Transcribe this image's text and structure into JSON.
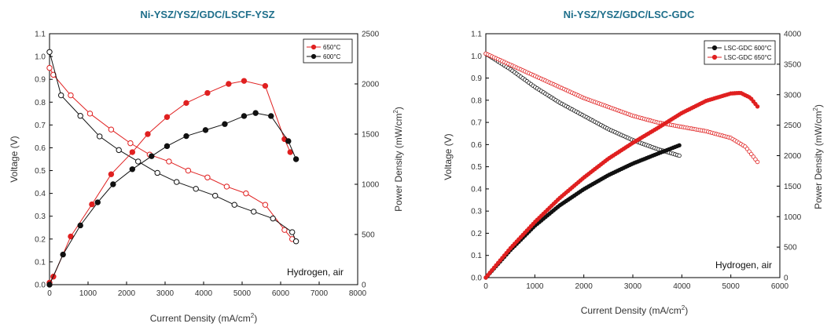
{
  "chart_data": [
    {
      "type": "line",
      "title": "Ni-YSZ/YSZ/GDC/LSCF-YSZ",
      "xlabel": "Current Density (mA/cm²)",
      "ylabel": "Voltage (V)",
      "y2label": "Power Density (mW/cm²)",
      "xlim": [
        0,
        8000
      ],
      "ylim": [
        0.0,
        1.1
      ],
      "y2lim": [
        0,
        2500
      ],
      "xticks": [
        0,
        1000,
        2000,
        3000,
        4000,
        5000,
        6000,
        7000,
        8000
      ],
      "yticks": [
        "0.0",
        "0.1",
        "0.2",
        "0.3",
        "0.4",
        "0.5",
        "0.6",
        "0.7",
        "0.8",
        "0.9",
        "1.0",
        "1.1"
      ],
      "y2ticks": [
        0,
        500,
        1000,
        1500,
        2000,
        2500
      ],
      "legend_position": "top-right",
      "legend": [
        "650°C",
        "600°C"
      ],
      "annotation": "Hydrogen, air",
      "series": [
        {
          "name": "650°C",
          "color": "#e02020",
          "kind": "voltage",
          "x": [
            0,
            100,
            550,
            1050,
            1600,
            2100,
            2600,
            3100,
            3600,
            4100,
            4600,
            5100,
            5600,
            6100,
            6300
          ],
          "y": [
            0.95,
            0.92,
            0.83,
            0.75,
            0.68,
            0.62,
            0.57,
            0.54,
            0.5,
            0.47,
            0.43,
            0.4,
            0.35,
            0.24,
            0.2
          ]
        },
        {
          "name": "600°C",
          "color": "#111111",
          "kind": "voltage",
          "x": [
            0,
            300,
            800,
            1300,
            1800,
            2300,
            2800,
            3300,
            3800,
            4300,
            4800,
            5300,
            5800,
            6300,
            6400
          ],
          "y": [
            1.02,
            0.83,
            0.74,
            0.65,
            0.59,
            0.54,
            0.49,
            0.45,
            0.42,
            0.39,
            0.35,
            0.32,
            0.29,
            0.23,
            0.19
          ]
        },
        {
          "name": "650°C",
          "color": "#e02020",
          "kind": "power",
          "x": [
            0,
            100,
            550,
            1100,
            1600,
            2150,
            2550,
            3050,
            3550,
            4100,
            4650,
            5050,
            5600,
            6100,
            6250
          ],
          "y": [
            20,
            80,
            480,
            800,
            1100,
            1320,
            1500,
            1670,
            1810,
            1910,
            2000,
            2030,
            1980,
            1450,
            1320
          ]
        },
        {
          "name": "600°C",
          "color": "#111111",
          "kind": "power",
          "x": [
            0,
            350,
            800,
            1250,
            1650,
            2150,
            2650,
            3050,
            3550,
            4050,
            4550,
            5050,
            5350,
            5750,
            6200,
            6400
          ],
          "y": [
            0,
            300,
            590,
            820,
            1000,
            1150,
            1280,
            1380,
            1480,
            1540,
            1600,
            1680,
            1710,
            1680,
            1430,
            1250
          ]
        }
      ]
    },
    {
      "type": "scatter",
      "title": "Ni-YSZ/YSZ/GDC/LSC-GDC",
      "xlabel": "Current Density (mA/cm²)",
      "ylabel": "Voltage (V)",
      "y2label": "Power Density (mW/cm²)",
      "xlim": [
        0,
        6000
      ],
      "ylim": [
        0.0,
        1.1
      ],
      "y2lim": [
        0,
        4000
      ],
      "xticks": [
        0,
        1000,
        2000,
        3000,
        4000,
        5000,
        6000
      ],
      "yticks": [
        "0.0",
        "0.1",
        "0.2",
        "0.3",
        "0.4",
        "0.5",
        "0.6",
        "0.7",
        "0.8",
        "0.9",
        "1.0",
        "1.1"
      ],
      "y2ticks": [
        0,
        500,
        1000,
        1500,
        2000,
        2500,
        3000,
        3500,
        4000
      ],
      "legend_position": "top-right",
      "legend": [
        "LSC-GDC 600°C",
        "LSC-GDC 650°C"
      ],
      "annotation": "Hydrogen, air",
      "series": [
        {
          "name": "LSC-GDC 600°C",
          "color": "#111111",
          "kind": "voltage",
          "x": [
            0,
            500,
            1000,
            1500,
            2000,
            2500,
            3000,
            3500,
            3950
          ],
          "y": [
            1.01,
            0.94,
            0.86,
            0.79,
            0.73,
            0.67,
            0.62,
            0.58,
            0.55
          ]
        },
        {
          "name": "LSC-GDC 650°C",
          "color": "#e02020",
          "kind": "voltage",
          "x": [
            0,
            500,
            1000,
            1500,
            2000,
            2500,
            3000,
            3500,
            4000,
            4500,
            5000,
            5300,
            5550
          ],
          "y": [
            1.01,
            0.96,
            0.91,
            0.86,
            0.81,
            0.77,
            0.73,
            0.7,
            0.68,
            0.66,
            0.63,
            0.59,
            0.52
          ]
        },
        {
          "name": "LSC-GDC 600°C",
          "color": "#111111",
          "kind": "power",
          "x": [
            0,
            500,
            1000,
            1500,
            2000,
            2500,
            3000,
            3500,
            3950
          ],
          "y": [
            0,
            450,
            850,
            1180,
            1450,
            1680,
            1870,
            2030,
            2170
          ]
        },
        {
          "name": "LSC-GDC 650°C",
          "color": "#e02020",
          "kind": "power",
          "x": [
            0,
            500,
            1000,
            1500,
            2000,
            2500,
            3000,
            3500,
            4000,
            4500,
            5000,
            5200,
            5400,
            5550
          ],
          "y": [
            0,
            480,
            910,
            1300,
            1640,
            1950,
            2210,
            2450,
            2700,
            2900,
            3020,
            3030,
            2950,
            2800
          ]
        }
      ]
    }
  ]
}
